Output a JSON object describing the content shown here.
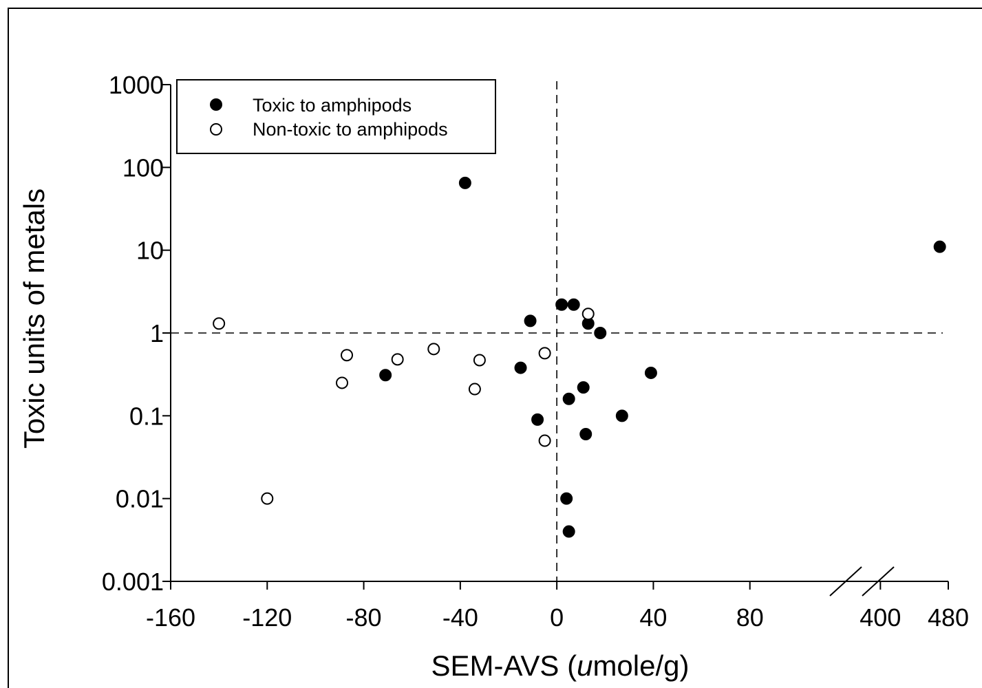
{
  "chart_data": {
    "type": "scatter",
    "xlabel_prefix": "SEM-AVS (",
    "xlabel_italic": "u",
    "xlabel_suffix": "mole/g)",
    "ylabel": "Toxic units of metals",
    "y_scale": "log",
    "ylim": [
      0.001,
      1000
    ],
    "y_ticks": [
      "1000",
      "100",
      "10",
      "1",
      "0.1",
      "0.01",
      "0.001"
    ],
    "x_axis_break": true,
    "x_segment_main": {
      "range": [
        -160,
        120
      ],
      "ticks": [
        "-160",
        "-120",
        "-80",
        "-40",
        "0",
        "40",
        "80"
      ]
    },
    "x_segment_after_break": {
      "range": [
        360,
        480
      ],
      "ticks": [
        "400",
        "480"
      ]
    },
    "reference_lines": {
      "x": 0,
      "y": 1,
      "style": "dashed"
    },
    "legend": {
      "placement": "top-left",
      "entries": [
        {
          "label": "Toxic to amphipods",
          "marker": "filled-circle"
        },
        {
          "label": "Non-toxic to amphipods",
          "marker": "open-circle"
        }
      ]
    },
    "series": [
      {
        "name": "Toxic to amphipods",
        "marker": "filled-circle",
        "points": [
          {
            "x": -38,
            "y": 65
          },
          {
            "x": 470,
            "y": 11
          },
          {
            "x": -71,
            "y": 0.31
          },
          {
            "x": -15,
            "y": 0.38
          },
          {
            "x": -11,
            "y": 1.4
          },
          {
            "x": -8,
            "y": 0.09
          },
          {
            "x": 2,
            "y": 2.2
          },
          {
            "x": 7,
            "y": 2.2
          },
          {
            "x": 13,
            "y": 1.3
          },
          {
            "x": 18,
            "y": 1.0
          },
          {
            "x": 5,
            "y": 0.16
          },
          {
            "x": 11,
            "y": 0.22
          },
          {
            "x": 12,
            "y": 0.06
          },
          {
            "x": 27,
            "y": 0.1
          },
          {
            "x": 39,
            "y": 0.33
          },
          {
            "x": 4,
            "y": 0.01
          },
          {
            "x": 5,
            "y": 0.004
          }
        ]
      },
      {
        "name": "Non-toxic to amphipods",
        "marker": "open-circle",
        "points": [
          {
            "x": -140,
            "y": 1.3
          },
          {
            "x": -120,
            "y": 0.01
          },
          {
            "x": -89,
            "y": 0.25
          },
          {
            "x": -87,
            "y": 0.54
          },
          {
            "x": -66,
            "y": 0.48
          },
          {
            "x": -51,
            "y": 0.64
          },
          {
            "x": -34,
            "y": 0.21
          },
          {
            "x": -32,
            "y": 0.47
          },
          {
            "x": -5,
            "y": 0.57
          },
          {
            "x": -5,
            "y": 0.05
          },
          {
            "x": 13,
            "y": 1.7
          }
        ]
      }
    ]
  }
}
